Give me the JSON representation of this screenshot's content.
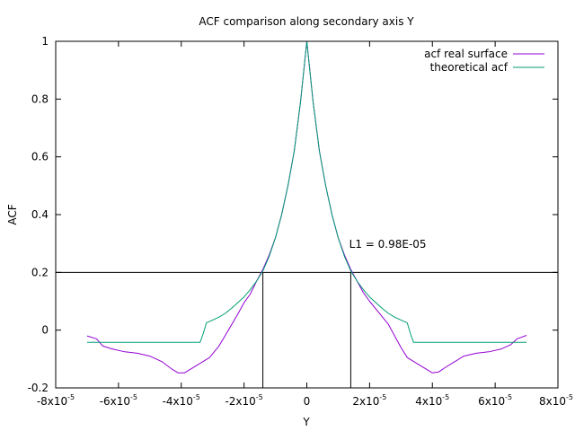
{
  "chart_data": {
    "type": "line",
    "title": "ACF comparison along secondary axis Y",
    "xlabel": "Y",
    "ylabel": "ACF",
    "xlim": [
      -8e-05,
      8e-05
    ],
    "ylim": [
      -0.2,
      1
    ],
    "x_ticks": [
      {
        "value": -8e-05,
        "mant": "-8x10",
        "exp": "-5"
      },
      {
        "value": -6e-05,
        "mant": "-6x10",
        "exp": "-5"
      },
      {
        "value": -4e-05,
        "mant": "-4x10",
        "exp": "-5"
      },
      {
        "value": -2e-05,
        "mant": "-2x10",
        "exp": "-5"
      },
      {
        "value": 0,
        "mant": "0",
        "exp": ""
      },
      {
        "value": 2e-05,
        "mant": "2x10",
        "exp": "-5"
      },
      {
        "value": 4e-05,
        "mant": "4x10",
        "exp": "-5"
      },
      {
        "value": 6e-05,
        "mant": "6x10",
        "exp": "-5"
      },
      {
        "value": 8e-05,
        "mant": "8x10",
        "exp": "-5"
      }
    ],
    "y_ticks": [
      {
        "value": -0.2,
        "label": "-0.2"
      },
      {
        "value": 0,
        "label": "0"
      },
      {
        "value": 0.2,
        "label": "0.2"
      },
      {
        "value": 0.4,
        "label": "0.4"
      },
      {
        "value": 0.6,
        "label": "0.6"
      },
      {
        "value": 0.8,
        "label": "0.8"
      },
      {
        "value": 1,
        "label": "1"
      }
    ],
    "legend_position": "top-right",
    "series": [
      {
        "name": "acf real surface",
        "color": "#9400d3",
        "points": [
          [
            -7e-05,
            -0.02
          ],
          [
            -6.7e-05,
            -0.03
          ],
          [
            -6.5e-05,
            -0.055
          ],
          [
            -6.2e-05,
            -0.065
          ],
          [
            -5.8e-05,
            -0.075
          ],
          [
            -5.4e-05,
            -0.08
          ],
          [
            -5e-05,
            -0.09
          ],
          [
            -4.6e-05,
            -0.11
          ],
          [
            -4.3e-05,
            -0.135
          ],
          [
            -4.1e-05,
            -0.148
          ],
          [
            -3.9e-05,
            -0.148
          ],
          [
            -3.7e-05,
            -0.135
          ],
          [
            -3.4e-05,
            -0.115
          ],
          [
            -3.1e-05,
            -0.095
          ],
          [
            -2.8e-05,
            -0.055
          ],
          [
            -2.5e-05,
            0.0
          ],
          [
            -2.2e-05,
            0.055
          ],
          [
            -2e-05,
            0.095
          ],
          [
            -1.8e-05,
            0.125
          ],
          [
            -1.6e-05,
            0.17
          ],
          [
            -1.4e-05,
            0.21
          ],
          [
            -1.2e-05,
            0.26
          ],
          [
            -1e-05,
            0.32
          ],
          [
            -8e-06,
            0.4
          ],
          [
            -6e-06,
            0.5
          ],
          [
            -4e-06,
            0.62
          ],
          [
            -2e-06,
            0.79
          ],
          [
            0,
            1.0
          ],
          [
            2e-06,
            0.79
          ],
          [
            4e-06,
            0.62
          ],
          [
            6e-06,
            0.5
          ],
          [
            8e-06,
            0.4
          ],
          [
            1e-05,
            0.32
          ],
          [
            1.2e-05,
            0.26
          ],
          [
            1.4e-05,
            0.21
          ],
          [
            1.6e-05,
            0.17
          ],
          [
            1.8e-05,
            0.13
          ],
          [
            2e-05,
            0.1
          ],
          [
            2.3e-05,
            0.06
          ],
          [
            2.6e-05,
            0.02
          ],
          [
            2.8e-05,
            -0.02
          ],
          [
            3e-05,
            -0.06
          ],
          [
            3.2e-05,
            -0.095
          ],
          [
            3.5e-05,
            -0.115
          ],
          [
            3.8e-05,
            -0.135
          ],
          [
            4e-05,
            -0.148
          ],
          [
            4.2e-05,
            -0.145
          ],
          [
            4.4e-05,
            -0.13
          ],
          [
            4.7e-05,
            -0.11
          ],
          [
            5e-05,
            -0.09
          ],
          [
            5.4e-05,
            -0.08
          ],
          [
            5.8e-05,
            -0.075
          ],
          [
            6.2e-05,
            -0.065
          ],
          [
            6.5e-05,
            -0.05
          ],
          [
            6.7e-05,
            -0.03
          ],
          [
            7e-05,
            -0.018
          ]
        ]
      },
      {
        "name": "theoretical acf",
        "color": "#009e73",
        "points": [
          [
            -7e-05,
            -0.042
          ],
          [
            -3.4e-05,
            -0.042
          ],
          [
            -3.3e-05,
            -0.012
          ],
          [
            -3.2e-05,
            0.025
          ],
          [
            -3e-05,
            0.035
          ],
          [
            -2.8e-05,
            0.045
          ],
          [
            -2.6e-05,
            0.058
          ],
          [
            -2.4e-05,
            0.075
          ],
          [
            -2.2e-05,
            0.095
          ],
          [
            -2e-05,
            0.115
          ],
          [
            -1.8e-05,
            0.14
          ],
          [
            -1.6e-05,
            0.17
          ],
          [
            -1.4e-05,
            0.205
          ],
          [
            -1.2e-05,
            0.255
          ],
          [
            -1e-05,
            0.32
          ],
          [
            -8e-06,
            0.4
          ],
          [
            -6e-06,
            0.5
          ],
          [
            -4e-06,
            0.62
          ],
          [
            -2e-06,
            0.79
          ],
          [
            0,
            1.0
          ],
          [
            2e-06,
            0.79
          ],
          [
            4e-06,
            0.62
          ],
          [
            6e-06,
            0.5
          ],
          [
            8e-06,
            0.4
          ],
          [
            1e-05,
            0.32
          ],
          [
            1.2e-05,
            0.255
          ],
          [
            1.4e-05,
            0.205
          ],
          [
            1.6e-05,
            0.17
          ],
          [
            1.8e-05,
            0.14
          ],
          [
            2e-05,
            0.115
          ],
          [
            2.2e-05,
            0.095
          ],
          [
            2.4e-05,
            0.075
          ],
          [
            2.6e-05,
            0.058
          ],
          [
            2.8e-05,
            0.045
          ],
          [
            3e-05,
            0.035
          ],
          [
            3.2e-05,
            0.025
          ],
          [
            3.3e-05,
            -0.012
          ],
          [
            3.4e-05,
            -0.042
          ],
          [
            7e-05,
            -0.042
          ]
        ]
      }
    ],
    "reference_lines": {
      "horizontal_y": 0.2,
      "vertical_x": [
        -1.4e-05,
        1.4e-05
      ]
    },
    "annotation": {
      "text": "L1 = 0.98E-05",
      "x": 1.35e-05,
      "y": 0.285
    }
  }
}
